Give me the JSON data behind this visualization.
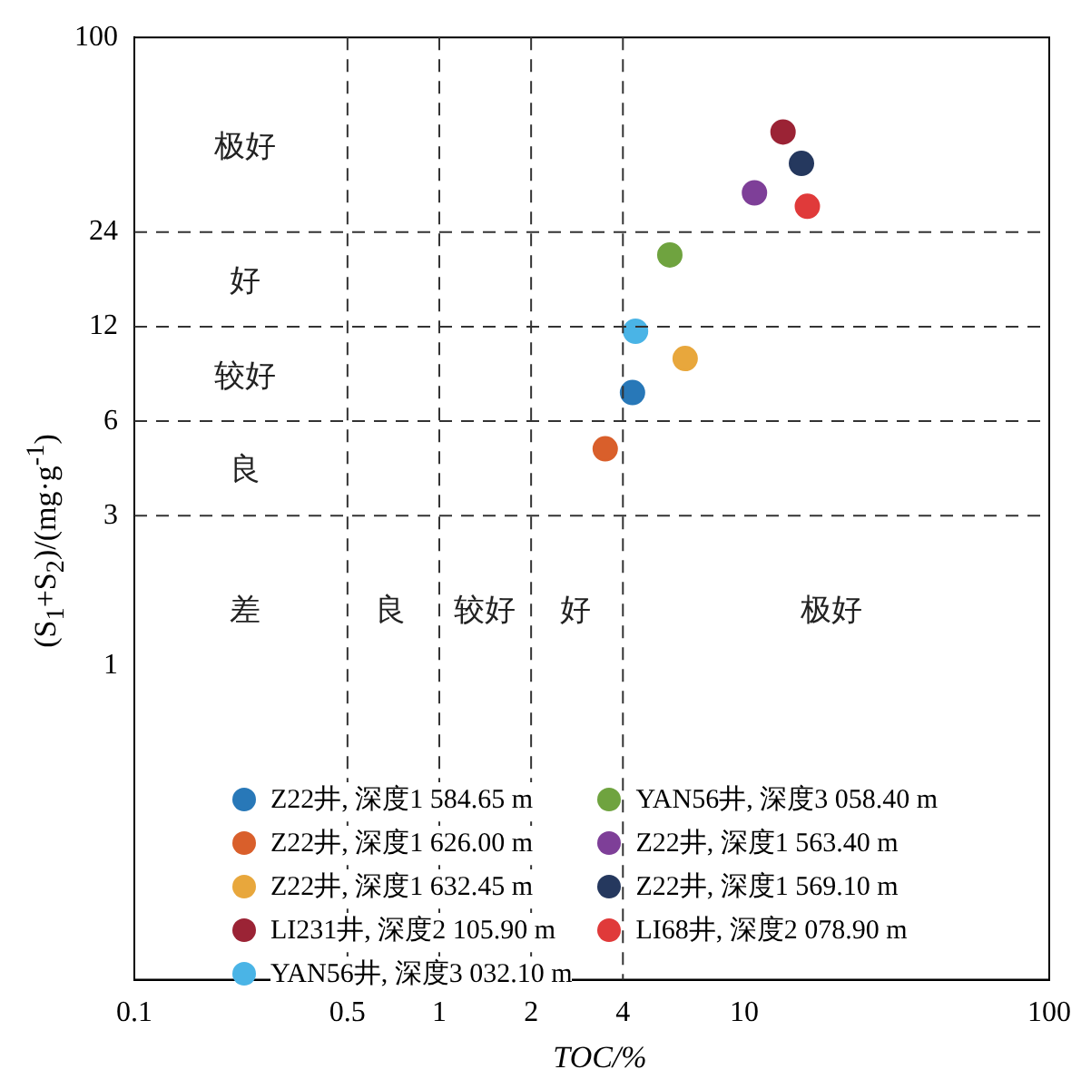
{
  "chart_data": {
    "type": "scatter",
    "xlabel": "TOC/%",
    "ylabel": "(S$_{1}$+S$_{2}$)/(mg·g$^{-1}$)",
    "log": "xy",
    "xlim": [
      0.1,
      100
    ],
    "ylim": [
      0.1,
      100
    ],
    "xticks": [
      0.1,
      0.5,
      1,
      2,
      4,
      10,
      100
    ],
    "yticks": [
      1,
      3,
      6,
      12,
      24,
      100
    ],
    "grid": false,
    "legend": "bottom",
    "marker": "circle",
    "series": [
      {
        "name": "Z22井, 深度1 584.65 m",
        "color": "#2878b8",
        "x": [
          4.3
        ],
        "values": [
          7.4
        ]
      },
      {
        "name": "Z22井, 深度1 626.00 m",
        "color": "#d95f2b",
        "x": [
          3.5
        ],
        "values": [
          4.9
        ]
      },
      {
        "name": "Z22井, 深度1 632.45 m",
        "color": "#e8a73c",
        "x": [
          6.4
        ],
        "values": [
          9.5
        ]
      },
      {
        "name": "LI231井, 深度2 105.90 m",
        "color": "#9b2335",
        "x": [
          13.4
        ],
        "values": [
          50
        ]
      },
      {
        "name": "YAN56井, 深度3 032.10 m",
        "color": "#4ab4e6",
        "x": [
          4.4
        ],
        "values": [
          11.6
        ]
      },
      {
        "name": "YAN56井, 深度3 058.40 m",
        "color": "#6fa33f",
        "x": [
          5.7
        ],
        "values": [
          20.3
        ]
      },
      {
        "name": "Z22井, 深度1 563.40 m",
        "color": "#7e3f98",
        "x": [
          10.8
        ],
        "values": [
          32
        ]
      },
      {
        "name": "Z22井, 深度1 569.10 m",
        "color": "#25385e",
        "x": [
          15.4
        ],
        "values": [
          39.7
        ]
      },
      {
        "name": "LI68井, 深度2 078.90 m",
        "color": "#e03a3a",
        "x": [
          16.1
        ],
        "values": [
          29
        ]
      }
    ],
    "ref_lines": [
      {
        "axis": "y",
        "value": 24,
        "line_style": "dashed"
      },
      {
        "axis": "y",
        "value": 12,
        "line_style": "dashed"
      },
      {
        "axis": "y",
        "value": 6,
        "line_style": "dashed"
      },
      {
        "axis": "y",
        "value": 3,
        "line_style": "dashed"
      },
      {
        "axis": "x",
        "value": 0.5,
        "line_style": "dashed"
      },
      {
        "axis": "x",
        "value": 1,
        "line_style": "dashed"
      },
      {
        "axis": "x",
        "value": 2,
        "line_style": "dashed"
      },
      {
        "axis": "x",
        "value": 4,
        "line_style": "dashed"
      }
    ],
    "annotations": [
      "极好",
      "好",
      "较好",
      "良",
      "差",
      "良",
      "较好",
      "好",
      "极好"
    ]
  }
}
